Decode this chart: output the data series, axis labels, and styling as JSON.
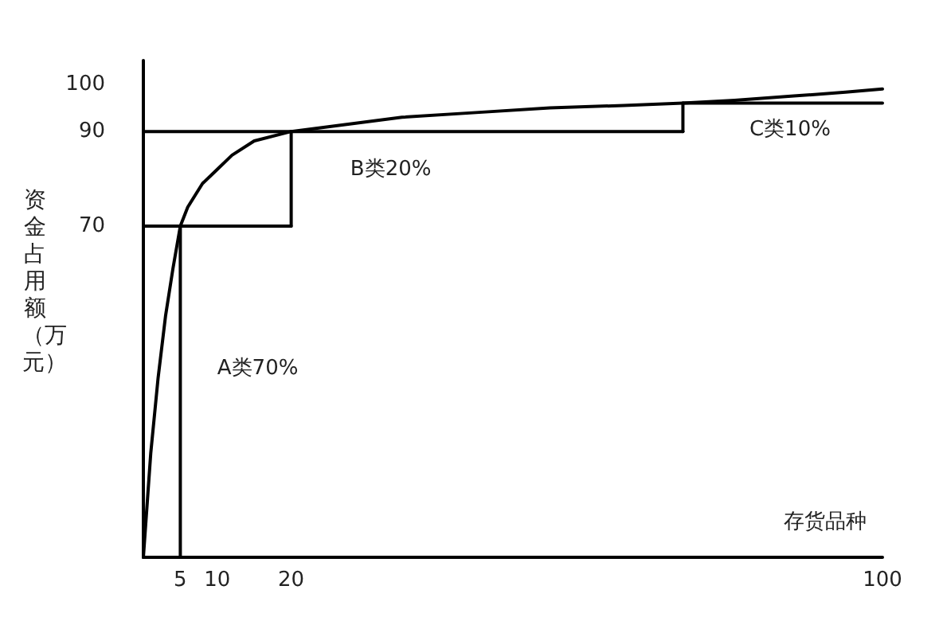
{
  "chart_data": {
    "type": "line",
    "xlabel": "存货品种",
    "ylabel": "资金占用额（万元）",
    "xlim": [
      0,
      100
    ],
    "xticks": [
      5,
      10,
      20,
      100
    ],
    "ylim": [
      0,
      105
    ],
    "yticks": [
      70,
      90,
      100
    ],
    "grid": false,
    "marker": "none",
    "line_style": "solid",
    "series": [
      {
        "color": "#000000",
        "x": [
          0,
          1,
          2,
          3,
          4,
          5,
          6,
          8,
          10,
          12,
          15,
          20,
          25,
          35,
          45,
          55,
          65,
          73,
          80,
          88,
          95,
          100
        ],
        "values": [
          0,
          22,
          38,
          51,
          61,
          70,
          74,
          79,
          82,
          85,
          88,
          90,
          91,
          93,
          94,
          95,
          95.5,
          96,
          96.6,
          97.5,
          98.3,
          99
        ]
      },
      {
        "color": "#000000",
        "x": [
          0,
          20
        ],
        "values": [
          70,
          70
        ]
      },
      {
        "color": "#000000",
        "x": [
          5,
          5
        ],
        "values": [
          0,
          70
        ]
      },
      {
        "color": "#000000",
        "x": [
          20,
          20
        ],
        "values": [
          70,
          90
        ]
      },
      {
        "color": "#000000",
        "x": [
          0,
          73
        ],
        "values": [
          90,
          90
        ]
      },
      {
        "color": "#000000",
        "x": [
          73,
          73
        ],
        "values": [
          90,
          96
        ]
      },
      {
        "color": "#000000",
        "x": [
          73,
          100
        ],
        "values": [
          96,
          96
        ]
      }
    ],
    "annotations": [
      "A类70%",
      "B类20%",
      "C类10%"
    ]
  }
}
